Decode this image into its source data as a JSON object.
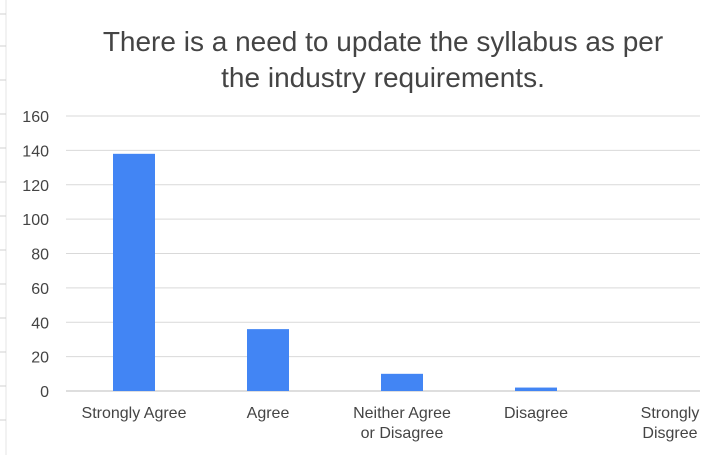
{
  "chart_data": {
    "type": "bar",
    "title_lines": [
      "There is a need to update the syllabus as per",
      "the industry requirements."
    ],
    "categories": [
      [
        "Strongly Agree"
      ],
      [
        "Agree"
      ],
      [
        "Neither Agree",
        "or Disagree"
      ],
      [
        "Disagree"
      ],
      [
        "Strongly",
        "Disgree"
      ]
    ],
    "values": [
      138,
      36,
      10,
      2,
      0
    ],
    "ylim": [
      0,
      160
    ],
    "yticks": [
      0,
      20,
      40,
      60,
      80,
      100,
      120,
      140,
      160
    ],
    "grid": true,
    "bar_color": "#4285f4",
    "grid_color": "#d9d9d9",
    "text_color": "#444444"
  }
}
